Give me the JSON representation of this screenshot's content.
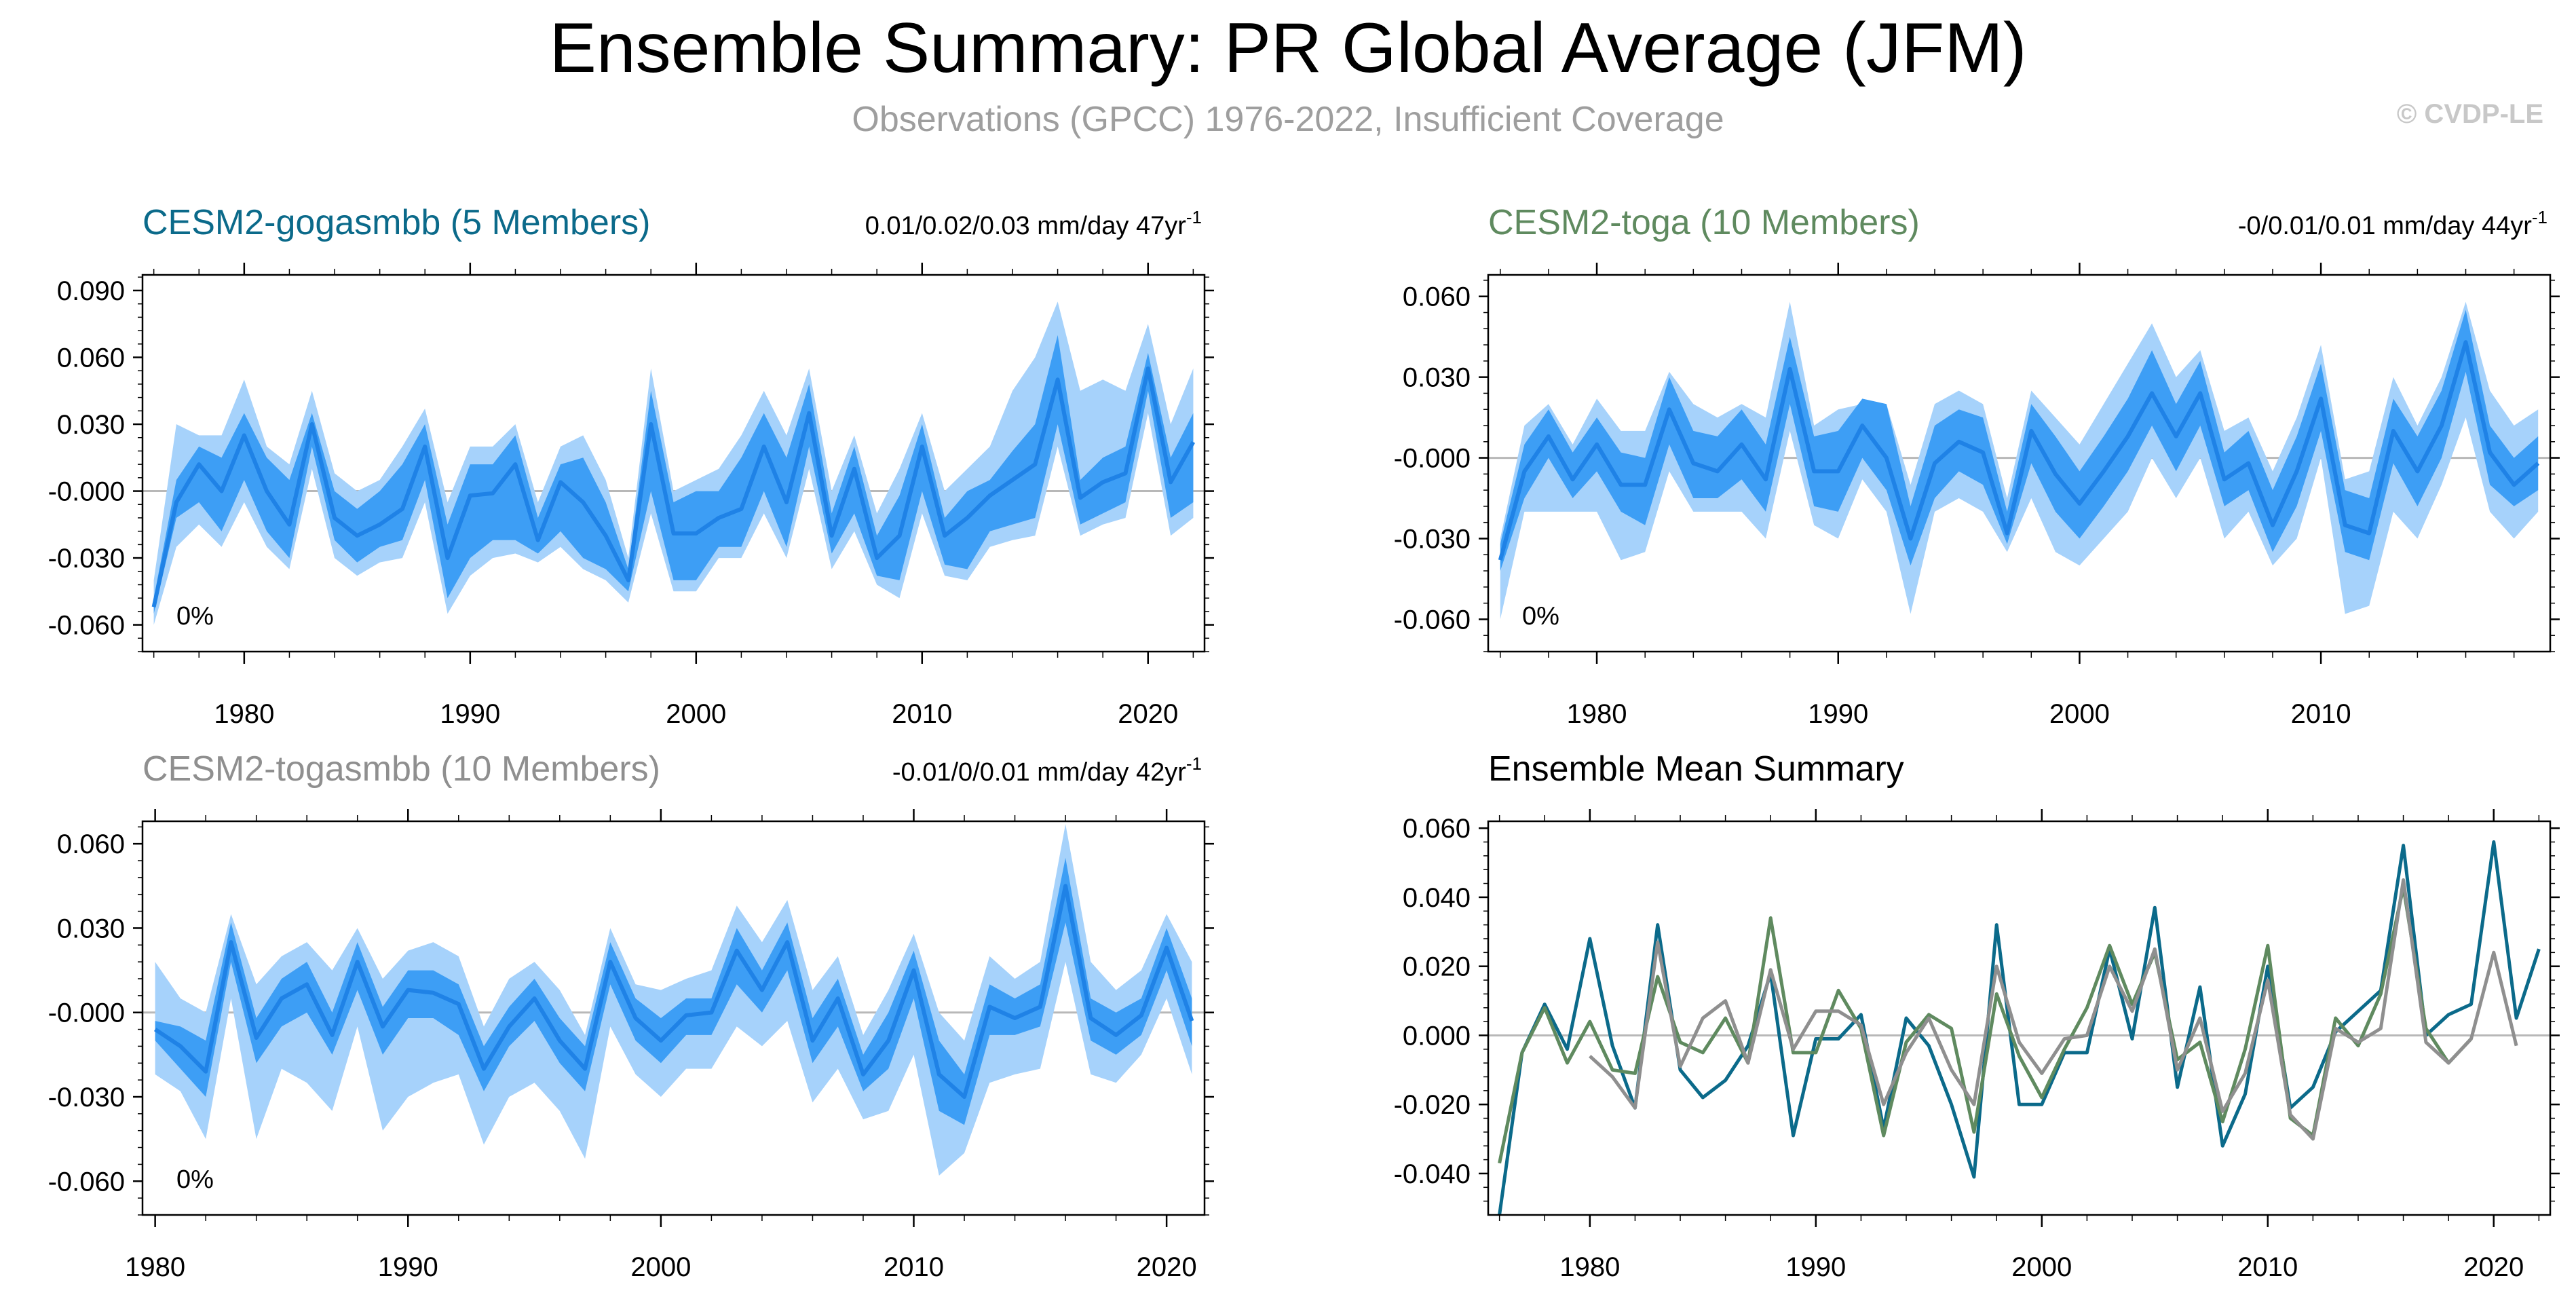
{
  "header": {
    "title": "Ensemble Summary: PR Global Average (JFM)",
    "subtitle": "Observations (GPCC) 1976-2022, Insufficient Coverage",
    "credit": "© CVDP-LE"
  },
  "colors": {
    "gogasmbb": "#0b6a8a",
    "toga": "#5f8a5f",
    "togasmbb": "#8f8f8f",
    "band_outer": "#a6d2fb",
    "band_inner": "#3d9ef5",
    "mean_line": "#1f82e6"
  },
  "chart_data": [
    {
      "id": "gogasmbb",
      "type": "area",
      "title": "CESM2-gogasmbb (5 Members)",
      "title_color": "#0b6a8a",
      "trend_text": "0.01/0.02/0.03 mm/day 47yr",
      "trend_sup": "-1",
      "percent_label": "0%",
      "x_start": 1976,
      "xlim": [
        1975.5,
        2022.5
      ],
      "ylim": [
        -0.072,
        0.097
      ],
      "yticks": [
        0.09,
        0.06,
        0.03,
        0.0,
        -0.03,
        -0.06
      ],
      "ytick_labels": [
        "0.090",
        "0.060",
        "0.030",
        "-0.000",
        "-0.030",
        "-0.060"
      ],
      "xticks": [
        1980,
        1990,
        2000,
        2010,
        2020
      ],
      "mean": [
        -0.052,
        -0.005,
        0.012,
        0.0,
        0.025,
        0.0,
        -0.015,
        0.03,
        -0.012,
        -0.02,
        -0.015,
        -0.008,
        0.02,
        -0.03,
        -0.002,
        -0.001,
        0.012,
        -0.022,
        0.004,
        -0.005,
        -0.02,
        -0.04,
        0.03,
        -0.019,
        -0.019,
        -0.012,
        -0.008,
        0.02,
        -0.005,
        0.035,
        -0.02,
        0.01,
        -0.03,
        -0.02,
        0.02,
        -0.02,
        -0.012,
        -0.002,
        0.005,
        0.012,
        0.05,
        -0.003,
        0.004,
        0.008,
        0.055,
        0.004,
        0.022
      ],
      "inner_lo": [
        -0.055,
        -0.012,
        -0.005,
        -0.018,
        0.005,
        -0.018,
        -0.03,
        0.02,
        -0.022,
        -0.032,
        -0.025,
        -0.022,
        0.005,
        -0.048,
        -0.03,
        -0.022,
        -0.022,
        -0.028,
        -0.018,
        -0.03,
        -0.035,
        -0.045,
        0.0,
        -0.04,
        -0.04,
        -0.025,
        -0.025,
        0.0,
        -0.025,
        0.02,
        -0.028,
        -0.01,
        -0.038,
        -0.04,
        0.0,
        -0.033,
        -0.035,
        -0.018,
        -0.015,
        -0.012,
        0.03,
        -0.015,
        -0.01,
        -0.005,
        0.045,
        -0.012,
        -0.005
      ],
      "inner_hi": [
        -0.048,
        0.005,
        0.02,
        0.015,
        0.035,
        0.015,
        0.005,
        0.035,
        0.0,
        -0.008,
        0.0,
        0.012,
        0.03,
        -0.015,
        0.012,
        0.012,
        0.025,
        -0.012,
        0.012,
        0.015,
        -0.005,
        -0.035,
        0.045,
        -0.005,
        0.0,
        0.0,
        0.015,
        0.035,
        0.015,
        0.048,
        -0.01,
        0.02,
        -0.02,
        -0.002,
        0.03,
        -0.012,
        0.0,
        0.005,
        0.018,
        0.03,
        0.07,
        0.005,
        0.015,
        0.02,
        0.062,
        0.015,
        0.035
      ],
      "outer_lo": [
        -0.06,
        -0.025,
        -0.015,
        -0.025,
        -0.005,
        -0.025,
        -0.035,
        0.01,
        -0.03,
        -0.038,
        -0.032,
        -0.03,
        -0.005,
        -0.055,
        -0.038,
        -0.03,
        -0.028,
        -0.032,
        -0.025,
        -0.035,
        -0.04,
        -0.05,
        -0.01,
        -0.045,
        -0.045,
        -0.03,
        -0.03,
        -0.01,
        -0.03,
        0.01,
        -0.035,
        -0.018,
        -0.042,
        -0.048,
        -0.01,
        -0.038,
        -0.04,
        -0.025,
        -0.022,
        -0.02,
        0.02,
        -0.02,
        -0.015,
        -0.012,
        0.035,
        -0.02,
        -0.012
      ],
      "outer_hi": [
        -0.04,
        0.03,
        0.025,
        0.025,
        0.05,
        0.02,
        0.012,
        0.045,
        0.008,
        0.0,
        0.005,
        0.02,
        0.037,
        -0.005,
        0.02,
        0.02,
        0.03,
        -0.005,
        0.02,
        0.025,
        0.005,
        -0.03,
        0.055,
        0.0,
        0.005,
        0.01,
        0.025,
        0.045,
        0.025,
        0.055,
        0.0,
        0.025,
        -0.01,
        0.01,
        0.035,
        0.0,
        0.01,
        0.02,
        0.045,
        0.06,
        0.085,
        0.045,
        0.05,
        0.045,
        0.075,
        0.03,
        0.055
      ]
    },
    {
      "id": "toga",
      "type": "area",
      "title": "CESM2-toga (10 Members)",
      "title_color": "#5f8a5f",
      "trend_text": "-0/0.01/0.01 mm/day 44yr",
      "trend_sup": "-1",
      "percent_label": "0%",
      "x_start": 1976,
      "xlim": [
        1975.5,
        2019.5
      ],
      "ylim": [
        -0.072,
        0.068
      ],
      "yticks": [
        0.06,
        0.03,
        0.0,
        -0.03,
        -0.06
      ],
      "ytick_labels": [
        "0.060",
        "0.030",
        "-0.000",
        "-0.030",
        "-0.060"
      ],
      "xticks": [
        1980,
        1990,
        2000,
        2010
      ],
      "mean": [
        -0.038,
        -0.005,
        0.008,
        -0.008,
        0.005,
        -0.01,
        -0.01,
        0.018,
        -0.002,
        -0.005,
        0.005,
        -0.008,
        0.033,
        -0.005,
        -0.005,
        0.012,
        0.0,
        -0.03,
        -0.002,
        0.006,
        0.002,
        -0.028,
        0.01,
        -0.006,
        -0.017,
        -0.005,
        0.008,
        0.024,
        0.008,
        0.024,
        -0.008,
        -0.002,
        -0.025,
        -0.005,
        0.022,
        -0.025,
        -0.028,
        0.01,
        -0.005,
        0.012,
        0.043,
        0.002,
        -0.01,
        -0.002
      ],
      "inner_lo": [
        -0.042,
        -0.015,
        0.0,
        -0.015,
        -0.005,
        -0.02,
        -0.025,
        0.005,
        -0.015,
        -0.015,
        -0.008,
        -0.02,
        0.02,
        -0.018,
        -0.02,
        0.0,
        -0.012,
        -0.04,
        -0.015,
        -0.005,
        -0.01,
        -0.032,
        -0.002,
        -0.02,
        -0.03,
        -0.018,
        -0.005,
        0.012,
        -0.005,
        0.012,
        -0.018,
        -0.012,
        -0.035,
        -0.018,
        0.01,
        -0.035,
        -0.038,
        -0.002,
        -0.018,
        0.0,
        0.032,
        -0.01,
        -0.018,
        -0.012
      ],
      "inner_hi": [
        -0.032,
        0.005,
        0.018,
        0.002,
        0.015,
        0.002,
        0.0,
        0.03,
        0.01,
        0.008,
        0.018,
        0.005,
        0.045,
        0.008,
        0.01,
        0.022,
        0.02,
        -0.018,
        0.012,
        0.018,
        0.015,
        -0.02,
        0.02,
        0.008,
        -0.005,
        0.008,
        0.022,
        0.04,
        0.02,
        0.036,
        0.002,
        0.01,
        -0.012,
        0.008,
        0.035,
        -0.012,
        -0.015,
        0.022,
        0.008,
        0.025,
        0.055,
        0.012,
        0.0,
        0.008
      ],
      "outer_lo": [
        -0.06,
        -0.02,
        -0.02,
        -0.02,
        -0.02,
        -0.038,
        -0.035,
        -0.005,
        -0.02,
        -0.02,
        -0.02,
        -0.03,
        0.01,
        -0.025,
        -0.03,
        -0.008,
        -0.02,
        -0.058,
        -0.02,
        -0.015,
        -0.02,
        -0.035,
        -0.015,
        -0.035,
        -0.04,
        -0.03,
        -0.02,
        0.0,
        -0.015,
        0.0,
        -0.03,
        -0.02,
        -0.04,
        -0.03,
        0.0,
        -0.058,
        -0.055,
        -0.02,
        -0.03,
        -0.01,
        0.015,
        -0.02,
        -0.03,
        -0.02
      ],
      "outer_hi": [
        -0.03,
        0.012,
        0.02,
        0.005,
        0.022,
        0.01,
        0.01,
        0.032,
        0.02,
        0.015,
        0.02,
        0.015,
        0.058,
        0.012,
        0.018,
        0.02,
        0.02,
        -0.01,
        0.02,
        0.025,
        0.02,
        -0.015,
        0.025,
        0.015,
        0.005,
        0.02,
        0.035,
        0.05,
        0.03,
        0.04,
        0.01,
        0.015,
        -0.005,
        0.015,
        0.042,
        -0.008,
        -0.005,
        0.03,
        0.012,
        0.03,
        0.058,
        0.025,
        0.012,
        0.018
      ]
    },
    {
      "id": "togasmbb",
      "type": "area",
      "title": "CESM2-togasmbb (10 Members)",
      "title_color": "#8f8f8f",
      "trend_text": "-0.01/0/0.01 mm/day 42yr",
      "trend_sup": "-1",
      "percent_label": "0%",
      "x_start": 1980,
      "xlim": [
        1979.5,
        2021.5
      ],
      "ylim": [
        -0.072,
        0.068
      ],
      "yticks": [
        0.06,
        0.03,
        0.0,
        -0.03,
        -0.06
      ],
      "ytick_labels": [
        "0.060",
        "0.030",
        "-0.000",
        "-0.030",
        "-0.060"
      ],
      "xticks": [
        1980,
        1990,
        2000,
        2010,
        2020
      ],
      "mean": [
        -0.006,
        -0.012,
        -0.021,
        0.025,
        -0.009,
        0.005,
        0.01,
        -0.008,
        0.018,
        -0.005,
        0.008,
        0.007,
        0.003,
        -0.02,
        -0.005,
        0.005,
        -0.01,
        -0.02,
        0.018,
        -0.002,
        -0.01,
        -0.001,
        0.0,
        0.022,
        0.008,
        0.025,
        -0.01,
        0.005,
        -0.022,
        -0.01,
        0.015,
        -0.022,
        -0.03,
        0.002,
        -0.002,
        0.002,
        0.045,
        -0.002,
        -0.008,
        -0.001,
        0.023,
        -0.003
      ],
      "inner_lo": [
        -0.01,
        -0.02,
        -0.03,
        0.018,
        -0.018,
        -0.005,
        0.0,
        -0.015,
        0.008,
        -0.015,
        -0.002,
        -0.002,
        -0.008,
        -0.028,
        -0.012,
        -0.003,
        -0.018,
        -0.028,
        0.01,
        -0.01,
        -0.018,
        -0.008,
        -0.008,
        0.01,
        0.0,
        0.015,
        -0.018,
        -0.005,
        -0.028,
        -0.02,
        0.005,
        -0.035,
        -0.04,
        -0.008,
        -0.008,
        -0.005,
        0.032,
        -0.01,
        -0.015,
        -0.008,
        0.015,
        -0.012
      ],
      "inner_hi": [
        -0.003,
        -0.005,
        -0.01,
        0.032,
        -0.002,
        0.012,
        0.018,
        0.0,
        0.025,
        0.002,
        0.015,
        0.015,
        0.01,
        -0.012,
        0.002,
        0.012,
        -0.002,
        -0.012,
        0.025,
        0.005,
        -0.002,
        0.005,
        0.005,
        0.03,
        0.015,
        0.032,
        -0.002,
        0.012,
        -0.015,
        0.0,
        0.022,
        -0.01,
        -0.022,
        0.01,
        0.005,
        0.01,
        0.055,
        0.005,
        0.0,
        0.005,
        0.03,
        0.005
      ],
      "outer_lo": [
        -0.022,
        -0.028,
        -0.045,
        0.005,
        -0.045,
        -0.02,
        -0.025,
        -0.035,
        -0.005,
        -0.042,
        -0.03,
        -0.025,
        -0.022,
        -0.047,
        -0.03,
        -0.025,
        -0.035,
        -0.052,
        -0.005,
        -0.022,
        -0.03,
        -0.02,
        -0.02,
        -0.005,
        -0.012,
        -0.003,
        -0.032,
        -0.02,
        -0.038,
        -0.035,
        -0.015,
        -0.058,
        -0.05,
        -0.025,
        -0.022,
        -0.02,
        0.018,
        -0.022,
        -0.025,
        -0.015,
        0.005,
        -0.022
      ],
      "outer_hi": [
        0.018,
        0.005,
        0.0,
        0.035,
        0.01,
        0.02,
        0.025,
        0.015,
        0.03,
        0.012,
        0.022,
        0.025,
        0.02,
        -0.005,
        0.012,
        0.018,
        0.008,
        -0.008,
        0.03,
        0.01,
        0.008,
        0.012,
        0.015,
        0.038,
        0.025,
        0.04,
        0.008,
        0.02,
        -0.008,
        0.008,
        0.028,
        0.0,
        -0.01,
        0.02,
        0.012,
        0.018,
        0.067,
        0.018,
        0.008,
        0.015,
        0.035,
        0.018
      ]
    },
    {
      "id": "ensemble_mean",
      "type": "line",
      "title": "Ensemble Mean Summary",
      "title_color": "#000000",
      "xlim": [
        1975.5,
        2022.5
      ],
      "ylim": [
        -0.052,
        0.062
      ],
      "yticks": [
        0.06,
        0.04,
        0.02,
        0.0,
        -0.02,
        -0.04
      ],
      "ytick_labels": [
        "0.060",
        "0.040",
        "0.020",
        "0.000",
        "-0.020",
        "-0.040"
      ],
      "xticks": [
        1980,
        1990,
        2000,
        2010,
        2020
      ],
      "series": [
        {
          "name": "CESM2-gogasmbb",
          "color": "#0b6a8a",
          "x_start": 1976,
          "values": [
            -0.052,
            -0.005,
            0.009,
            -0.004,
            0.028,
            -0.003,
            -0.021,
            0.032,
            -0.01,
            -0.018,
            -0.013,
            -0.003,
            0.018,
            -0.029,
            -0.001,
            -0.001,
            0.006,
            -0.027,
            0.005,
            -0.003,
            -0.02,
            -0.041,
            0.032,
            -0.02,
            -0.02,
            -0.005,
            -0.005,
            0.025,
            -0.001,
            0.037,
            -0.015,
            0.014,
            -0.032,
            -0.017,
            0.02,
            -0.021,
            -0.015,
            0.001,
            0.007,
            0.013,
            0.055,
            0.0,
            0.006,
            0.009,
            0.056,
            0.005,
            0.025
          ]
        },
        {
          "name": "CESM2-toga",
          "color": "#5f8a5f",
          "x_start": 1976,
          "values": [
            -0.037,
            -0.005,
            0.008,
            -0.008,
            0.004,
            -0.01,
            -0.011,
            0.017,
            -0.002,
            -0.005,
            0.005,
            -0.008,
            0.034,
            -0.005,
            -0.005,
            0.013,
            0.002,
            -0.029,
            -0.002,
            0.006,
            0.002,
            -0.028,
            0.012,
            -0.006,
            -0.018,
            -0.004,
            0.008,
            0.026,
            0.009,
            0.024,
            -0.007,
            -0.002,
            -0.025,
            -0.004,
            0.026,
            -0.024,
            -0.029,
            0.005,
            -0.003,
            0.012,
            0.043,
            0.002,
            -0.008,
            -0.001
          ]
        },
        {
          "name": "CESM2-togasmbb",
          "color": "#8f8f8f",
          "x_start": 1980,
          "values": [
            -0.006,
            -0.012,
            -0.021,
            0.027,
            -0.009,
            0.005,
            0.01,
            -0.008,
            0.019,
            -0.004,
            0.007,
            0.007,
            0.003,
            -0.02,
            -0.005,
            0.005,
            -0.01,
            -0.02,
            0.02,
            -0.002,
            -0.011,
            -0.001,
            0.0,
            0.02,
            0.007,
            0.025,
            -0.01,
            0.005,
            -0.022,
            -0.011,
            0.016,
            -0.023,
            -0.03,
            0.002,
            -0.002,
            0.002,
            0.045,
            -0.002,
            -0.008,
            -0.001,
            0.024,
            -0.003
          ]
        }
      ]
    }
  ]
}
